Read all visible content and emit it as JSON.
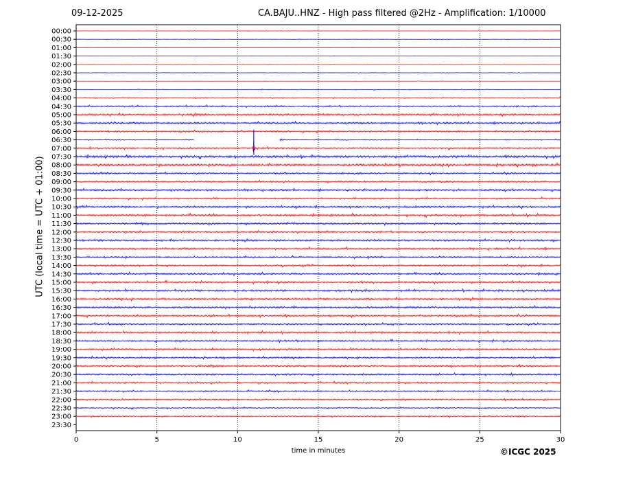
{
  "header": {
    "date": "09-12-2025",
    "title": "CA.BAJU..HNZ - High pass filtered @2Hz - Amplification: 1/10000"
  },
  "footer": {
    "copyright": "©ICGC 2025"
  },
  "chart_data": {
    "type": "line",
    "title": "CA.BAJU..HNZ - High pass filtered @2Hz - Amplification: 1/10000",
    "xlabel": "time in minutes",
    "ylabel": "UTC (local time = UTC + 01:00)",
    "xlim": [
      0,
      30
    ],
    "x_ticks": [
      0,
      5,
      10,
      15,
      20,
      25,
      30
    ],
    "vertical_gridlines_dotted": [
      5,
      10,
      15,
      20,
      25
    ],
    "row_labels": [
      "00:00",
      "00:30",
      "01:00",
      "01:30",
      "02:00",
      "02:30",
      "03:00",
      "03:30",
      "04:00",
      "04:30",
      "05:00",
      "05:30",
      "06:00",
      "06:30",
      "07:00",
      "07:30",
      "08:00",
      "08:30",
      "09:00",
      "09:30",
      "10:00",
      "10:30",
      "11:00",
      "11:30",
      "12:00",
      "12:30",
      "13:00",
      "13:30",
      "14:00",
      "14:30",
      "15:00",
      "15:30",
      "16:00",
      "16:30",
      "17:00",
      "17:30",
      "18:00",
      "18:30",
      "19:00",
      "19:30",
      "20:00",
      "20:30",
      "21:00",
      "21:30",
      "22:00",
      "22:30",
      "23:00",
      "23:30"
    ],
    "row_colors": [
      "#ff0000",
      "#0000ff"
    ],
    "rows_with_trace": 47,
    "series_note_color_alternates_by_row": true,
    "noise_amplitude_by_row": [
      0.1,
      0.1,
      0.1,
      0.1,
      0.1,
      0.1,
      0.1,
      0.15,
      0.25,
      0.35,
      0.5,
      0.45,
      0.4,
      0.2,
      0.4,
      0.55,
      0.55,
      0.4,
      0.4,
      0.45,
      0.4,
      0.45,
      0.5,
      0.45,
      0.4,
      0.45,
      0.45,
      0.4,
      0.4,
      0.45,
      0.45,
      0.45,
      0.5,
      0.45,
      0.45,
      0.4,
      0.45,
      0.4,
      0.45,
      0.4,
      0.45,
      0.4,
      0.4,
      0.35,
      0.35,
      0.3,
      0.3,
      0.0
    ],
    "events": [
      {
        "row": "06:30",
        "minute": 11.0,
        "amplitude": 4.5
      },
      {
        "row": "06:30",
        "minute": 12.7,
        "amplitude": 0.8
      },
      {
        "row": "07:00",
        "minute": 11.0,
        "amplitude": 3.0
      },
      {
        "row": "11:00",
        "minute": 4.3,
        "amplitude": 0.9
      },
      {
        "row": "11:30",
        "minute": 4.1,
        "amplitude": 1.0
      },
      {
        "row": "07:30",
        "minute": 29.7,
        "amplitude": 0.8
      },
      {
        "row": "10:00",
        "minute": 8.7,
        "amplitude": 0.6
      },
      {
        "row": "12:30",
        "minute": 14.3,
        "amplitude": 0.6
      }
    ],
    "gaps": [
      {
        "row": "06:30",
        "from_minute": 7.3,
        "to_minute": 12.6
      }
    ]
  }
}
